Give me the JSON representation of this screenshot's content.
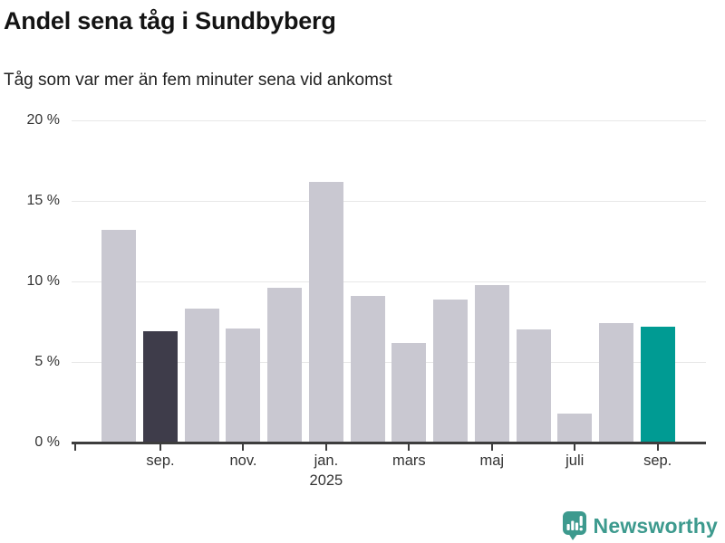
{
  "header": {
    "title": "Andel sena tåg i Sundbyberg",
    "subtitle": "Tåg som var mer än fem minuter sena vid ankomst"
  },
  "chart_data": {
    "type": "bar",
    "title": "Andel sena tåg i Sundbyberg",
    "subtitle": "Tåg som var mer än fem minuter sena vid ankomst",
    "unit": "%",
    "categories": [
      "aug. 2024",
      "sep. 2024",
      "okt. 2024",
      "nov. 2024",
      "dec. 2024",
      "jan. 2025",
      "feb. 2025",
      "mars 2025",
      "april 2025",
      "maj 2025",
      "juni 2025",
      "juli 2025",
      "aug. 2025",
      "sep. 2025"
    ],
    "values": [
      13.2,
      6.9,
      8.3,
      7.1,
      9.6,
      16.2,
      9.1,
      6.2,
      8.9,
      9.8,
      7.0,
      1.8,
      7.4,
      7.2
    ],
    "xlabel": "",
    "ylabel": "",
    "ylim": [
      0,
      20
    ],
    "grid": "horizontal",
    "legend": "none",
    "yticks": [
      {
        "value": 0,
        "label": "0 %"
      },
      {
        "value": 5,
        "label": "5 %"
      },
      {
        "value": 10,
        "label": "10 %"
      },
      {
        "value": 15,
        "label": "15 %"
      },
      {
        "value": 20,
        "label": "20 %"
      }
    ],
    "xticks": [
      {
        "bar_index": 1,
        "label": "sep."
      },
      {
        "bar_index": 3,
        "label": "nov."
      },
      {
        "bar_index": 5,
        "label": "jan.",
        "sublabel": "2025"
      },
      {
        "bar_index": 7,
        "label": "mars"
      },
      {
        "bar_index": 9,
        "label": "maj"
      },
      {
        "bar_index": 11,
        "label": "juli"
      },
      {
        "bar_index": 13,
        "label": "sep."
      }
    ],
    "colors": {
      "default": "#c9c8d1",
      "highlights": {
        "1": "#3e3c4a",
        "13": "#009b93"
      }
    }
  },
  "footer": {
    "brand": "Newsworthy",
    "brand_color": "#3d9a8e"
  }
}
